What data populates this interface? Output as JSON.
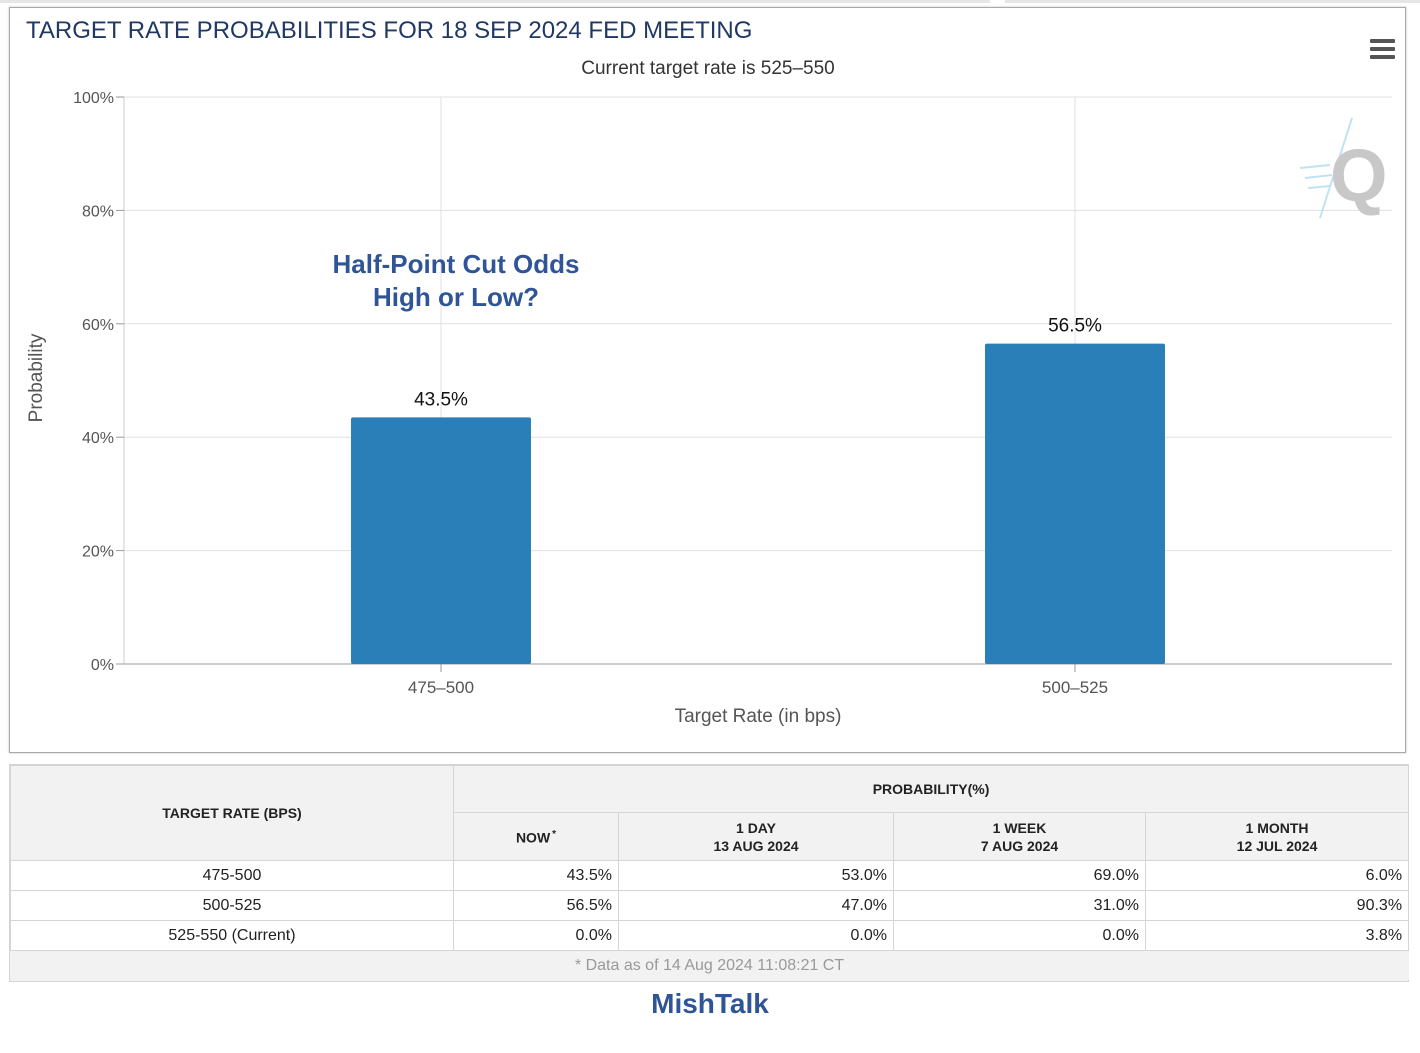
{
  "chart_data": {
    "type": "bar",
    "title": "TARGET RATE PROBABILITIES FOR 18 SEP 2024 FED MEETING",
    "subtitle": "Current target rate is 525–550",
    "xlabel": "Target Rate (in bps)",
    "ylabel": "Probability",
    "categories": [
      "475–500",
      "500–525"
    ],
    "values": [
      43.5,
      56.5
    ],
    "data_labels": [
      "43.5%",
      "56.5%"
    ],
    "ylim": [
      0,
      100
    ],
    "yticks": [
      0,
      20,
      40,
      60,
      80,
      100
    ],
    "ytick_labels": [
      "0%",
      "20%",
      "40%",
      "60%",
      "80%",
      "100%"
    ],
    "grid": true,
    "bar_color": "#2a7fb8",
    "annotation": [
      "Half-Point Cut Odds",
      "High or Low?"
    ]
  },
  "icons": {
    "menu": "hamburger-menu-icon",
    "watermark": "quikstrike-q-logo"
  },
  "table": {
    "target_rate_header": "TARGET RATE (BPS)",
    "probability_header": "PROBABILITY(%)",
    "now_header": "NOW",
    "now_marker": "*",
    "columns": [
      {
        "label": "1 DAY",
        "date": "13 AUG 2024"
      },
      {
        "label": "1 WEEK",
        "date": "7 AUG 2024"
      },
      {
        "label": "1 MONTH",
        "date": "12 JUL 2024"
      }
    ],
    "rows": [
      {
        "rate": "475-500",
        "now": "43.5%",
        "day": "53.0%",
        "week": "69.0%",
        "month": "6.0%"
      },
      {
        "rate": "500-525",
        "now": "56.5%",
        "day": "47.0%",
        "week": "31.0%",
        "month": "90.3%"
      },
      {
        "rate": "525-550 (Current)",
        "now": "0.0%",
        "day": "0.0%",
        "week": "0.0%",
        "month": "3.8%"
      }
    ],
    "footnote": "* Data as of 14 Aug 2024 11:08:21 CT"
  },
  "brand": "MishTalk",
  "colors": {
    "title": "#1f3864",
    "annotation": "#2f5597",
    "highlight": "#fafad2"
  }
}
